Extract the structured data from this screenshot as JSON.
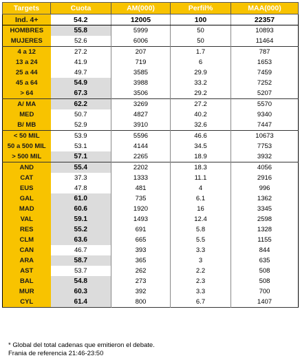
{
  "headers": [
    "Targets",
    "Cuota",
    "AM(000)",
    "Perfil%",
    "MAA(000)"
  ],
  "total": {
    "label": "Ind. 4+",
    "cuota": "54.2",
    "am": "12005",
    "perfil": "100",
    "maa": "22357"
  },
  "groups": [
    [
      {
        "label": "HOMBRES",
        "cuota": "55.8",
        "am": "5999",
        "perfil": "50",
        "maa": "10893",
        "hl": true
      },
      {
        "label": "MUJERES",
        "cuota": "52.6",
        "am": "6006",
        "perfil": "50",
        "maa": "11464",
        "hl": false
      }
    ],
    [
      {
        "label": "4 a 12",
        "cuota": "27.2",
        "am": "207",
        "perfil": "1.7",
        "maa": "787",
        "hl": false
      },
      {
        "label": "13 a 24",
        "cuota": "41.9",
        "am": "719",
        "perfil": "6",
        "maa": "1653",
        "hl": false
      },
      {
        "label": "25 a 44",
        "cuota": "49.7",
        "am": "3585",
        "perfil": "29.9",
        "maa": "7459",
        "hl": false
      },
      {
        "label": "45 a 64",
        "cuota": "54.9",
        "am": "3988",
        "perfil": "33.2",
        "maa": "7252",
        "hl": true
      },
      {
        "label": "> 64",
        "cuota": "67.3",
        "am": "3506",
        "perfil": "29.2",
        "maa": "5207",
        "hl": true
      }
    ],
    [
      {
        "label": "A/ MA",
        "cuota": "62.2",
        "am": "3269",
        "perfil": "27.2",
        "maa": "5570",
        "hl": true
      },
      {
        "label": "MED",
        "cuota": "50.7",
        "am": "4827",
        "perfil": "40.2",
        "maa": "9340",
        "hl": false
      },
      {
        "label": "B/ MB",
        "cuota": "52.9",
        "am": "3910",
        "perfil": "32.6",
        "maa": "7447",
        "hl": false
      }
    ],
    [
      {
        "label": "< 50 MIL",
        "cuota": "53.9",
        "am": "5596",
        "perfil": "46.6",
        "maa": "10673",
        "hl": false
      },
      {
        "label": "50 a 500 MIL",
        "cuota": "53.1",
        "am": "4144",
        "perfil": "34.5",
        "maa": "7753",
        "hl": false
      },
      {
        "label": "> 500 MIL",
        "cuota": "57.1",
        "am": "2265",
        "perfil": "18.9",
        "maa": "3932",
        "hl": true
      }
    ],
    [
      {
        "label": "AND",
        "cuota": "55.4",
        "am": "2202",
        "perfil": "18.3",
        "maa": "4056",
        "hl": true
      },
      {
        "label": "CAT",
        "cuota": "37.3",
        "am": "1333",
        "perfil": "11.1",
        "maa": "2916",
        "hl": false
      },
      {
        "label": "EUS",
        "cuota": "47.8",
        "am": "481",
        "perfil": "4",
        "maa": "996",
        "hl": false
      },
      {
        "label": "GAL",
        "cuota": "61.0",
        "am": "735",
        "perfil": "6.1",
        "maa": "1362",
        "hl": true
      },
      {
        "label": "MAD",
        "cuota": "60.6",
        "am": "1920",
        "perfil": "16",
        "maa": "3345",
        "hl": true
      },
      {
        "label": "VAL",
        "cuota": "59.1",
        "am": "1493",
        "perfil": "12.4",
        "maa": "2598",
        "hl": true
      },
      {
        "label": "RES",
        "cuota": "55.2",
        "am": "691",
        "perfil": "5.8",
        "maa": "1328",
        "hl": true
      },
      {
        "label": "CLM",
        "cuota": "63.6",
        "am": "665",
        "perfil": "5.5",
        "maa": "1155",
        "hl": true
      },
      {
        "label": "CAN",
        "cuota": "46.7",
        "am": "393",
        "perfil": "3.3",
        "maa": "844",
        "hl": false
      },
      {
        "label": "ARA",
        "cuota": "58.7",
        "am": "365",
        "perfil": "3",
        "maa": "635",
        "hl": true
      },
      {
        "label": "AST",
        "cuota": "53.7",
        "am": "262",
        "perfil": "2.2",
        "maa": "508",
        "hl": false
      },
      {
        "label": "BAL",
        "cuota": "54.8",
        "am": "273",
        "perfil": "2.3",
        "maa": "508",
        "hl": true
      },
      {
        "label": "MUR",
        "cuota": "60.3",
        "am": "392",
        "perfil": "3.3",
        "maa": "700",
        "hl": true
      },
      {
        "label": "CYL",
        "cuota": "61.4",
        "am": "800",
        "perfil": "6.7",
        "maa": "1407",
        "hl": true
      }
    ]
  ],
  "notes": [
    "* Global del total cadenas que emitieron el debate.",
    "Frania de referencia 21:46-23:50"
  ]
}
